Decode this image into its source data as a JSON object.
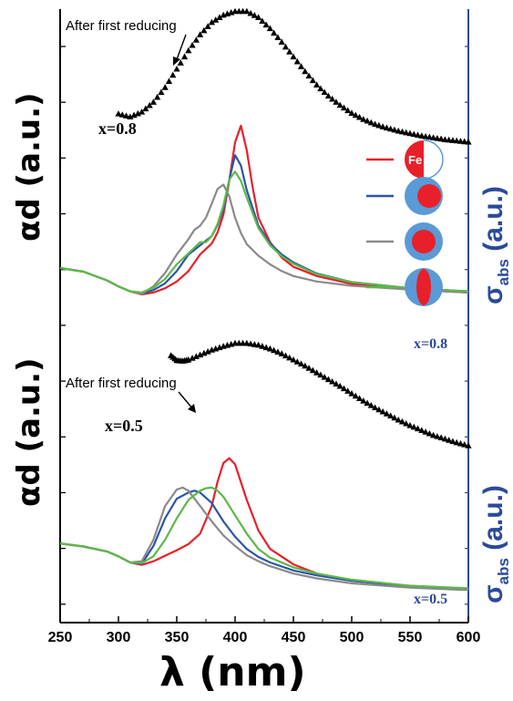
{
  "labels": {
    "ylabel_left_top": "αd (a.u.)",
    "ylabel_left_bottom": "αd (a.u.)",
    "ylabel_right_top_main": "σ",
    "ylabel_right_top_sub": "abs",
    "ylabel_right_top_unit": "(a.u.)",
    "ylabel_right_bottom_main": "σ",
    "ylabel_right_bottom_sub": "abs",
    "ylabel_right_bottom_unit": "(a.u.)",
    "xlabel": "λ (nm)",
    "annotation_top": "After  first reducing",
    "annotation_bottom": "After  first reducing",
    "x_top_left": "x=0.8",
    "x_top_right": "x=0.8",
    "x_bottom_left": "x=0.5",
    "x_bottom_right": "x=0.5",
    "fe_label": "Fe"
  },
  "colors": {
    "red": "#e8202a",
    "blue": "#2b55a7",
    "gray": "#8a8a8a",
    "green": "#5cb84a",
    "marker": "#000000",
    "particle_blue": "#5a9ad6",
    "particle_red": "#e8202a",
    "axis_blue": "#2a4a9a"
  },
  "chart_data": {
    "type": "line",
    "xlim": [
      250,
      600
    ],
    "xticks": [
      "250",
      "300",
      "350",
      "400",
      "450",
      "500",
      "550",
      "600"
    ],
    "ylim": [
      0,
      1
    ],
    "y_units": "a.u.",
    "series": [
      {
        "panel": "top",
        "kind": "marker",
        "color": "marker",
        "x": [
          300,
          310,
          320,
          330,
          340,
          350,
          360,
          370,
          380,
          390,
          400,
          410,
          420,
          430,
          440,
          450,
          460,
          470,
          480,
          490,
          500,
          510,
          520,
          530,
          540,
          550,
          560,
          570,
          580,
          590,
          600
        ],
        "y": [
          0.829,
          0.824,
          0.832,
          0.848,
          0.872,
          0.902,
          0.932,
          0.958,
          0.978,
          0.99,
          0.996,
          0.996,
          0.986,
          0.968,
          0.946,
          0.922,
          0.898,
          0.876,
          0.858,
          0.843,
          0.83,
          0.82,
          0.812,
          0.806,
          0.801,
          0.797,
          0.793,
          0.79,
          0.787,
          0.785,
          0.783
        ]
      },
      {
        "panel": "top",
        "kind": "line",
        "color": "red",
        "x": [
          250,
          270,
          290,
          300,
          310,
          320,
          330,
          340,
          350,
          360,
          370,
          380,
          385,
          390,
          395,
          400,
          405,
          410,
          415,
          420,
          430,
          440,
          450,
          470,
          500,
          550,
          600
        ],
        "y": [
          0.578,
          0.572,
          0.558,
          0.548,
          0.54,
          0.535,
          0.538,
          0.545,
          0.556,
          0.573,
          0.6,
          0.618,
          0.636,
          0.665,
          0.72,
          0.783,
          0.81,
          0.77,
          0.71,
          0.66,
          0.62,
          0.595,
          0.58,
          0.565,
          0.552,
          0.543,
          0.538
        ]
      },
      {
        "panel": "top",
        "kind": "line",
        "color": "blue",
        "x": [
          250,
          270,
          290,
          300,
          310,
          320,
          330,
          340,
          350,
          360,
          370,
          380,
          385,
          390,
          395,
          400,
          405,
          410,
          420,
          430,
          440,
          450,
          470,
          500,
          550,
          600
        ],
        "y": [
          0.578,
          0.572,
          0.558,
          0.548,
          0.54,
          0.536,
          0.542,
          0.553,
          0.573,
          0.6,
          0.615,
          0.63,
          0.648,
          0.674,
          0.722,
          0.762,
          0.745,
          0.705,
          0.647,
          0.618,
          0.6,
          0.587,
          0.569,
          0.555,
          0.545,
          0.54
        ]
      },
      {
        "panel": "top",
        "kind": "line",
        "color": "gray",
        "x": [
          250,
          270,
          290,
          300,
          310,
          320,
          330,
          340,
          350,
          360,
          365,
          370,
          375,
          380,
          385,
          390,
          395,
          400,
          405,
          410,
          420,
          430,
          440,
          450,
          470,
          500,
          550,
          600
        ],
        "y": [
          0.578,
          0.572,
          0.558,
          0.548,
          0.54,
          0.536,
          0.548,
          0.57,
          0.6,
          0.625,
          0.64,
          0.647,
          0.66,
          0.683,
          0.707,
          0.714,
          0.695,
          0.66,
          0.635,
          0.617,
          0.598,
          0.584,
          0.573,
          0.565,
          0.556,
          0.549,
          0.543,
          0.538
        ]
      },
      {
        "panel": "top",
        "kind": "line",
        "color": "green",
        "x": [
          250,
          270,
          290,
          300,
          310,
          320,
          330,
          340,
          350,
          360,
          370,
          375,
          380,
          385,
          390,
          395,
          400,
          405,
          410,
          420,
          430,
          440,
          450,
          470,
          500,
          550,
          600
        ],
        "y": [
          0.578,
          0.572,
          0.558,
          0.548,
          0.54,
          0.538,
          0.546,
          0.56,
          0.584,
          0.602,
          0.62,
          0.62,
          0.63,
          0.65,
          0.68,
          0.722,
          0.735,
          0.72,
          0.693,
          0.643,
          0.615,
          0.597,
          0.585,
          0.568,
          0.555,
          0.545,
          0.54
        ]
      },
      {
        "panel": "bottom",
        "kind": "marker",
        "color": "marker",
        "x": [
          345,
          350,
          355,
          360,
          370,
          380,
          390,
          400,
          410,
          420,
          430,
          440,
          450,
          460,
          470,
          480,
          490,
          500,
          510,
          520,
          530,
          540,
          550,
          560,
          570,
          580,
          590,
          600
        ],
        "y": [
          0.435,
          0.427,
          0.426,
          0.428,
          0.436,
          0.444,
          0.45,
          0.455,
          0.455,
          0.452,
          0.446,
          0.438,
          0.428,
          0.418,
          0.407,
          0.396,
          0.385,
          0.373,
          0.361,
          0.35,
          0.34,
          0.33,
          0.321,
          0.313,
          0.305,
          0.299,
          0.293,
          0.288
        ]
      },
      {
        "panel": "bottom",
        "kind": "line",
        "color": "red",
        "x": [
          250,
          270,
          290,
          300,
          310,
          320,
          330,
          340,
          350,
          360,
          370,
          380,
          385,
          390,
          395,
          400,
          410,
          420,
          430,
          450,
          470,
          500,
          550,
          600
        ],
        "y": [
          0.129,
          0.124,
          0.116,
          0.108,
          0.098,
          0.094,
          0.1,
          0.109,
          0.118,
          0.128,
          0.145,
          0.19,
          0.23,
          0.26,
          0.268,
          0.258,
          0.2,
          0.15,
          0.12,
          0.095,
          0.08,
          0.068,
          0.06,
          0.055
        ]
      },
      {
        "panel": "bottom",
        "kind": "line",
        "color": "blue",
        "x": [
          250,
          270,
          290,
          300,
          310,
          320,
          330,
          340,
          350,
          360,
          365,
          370,
          380,
          390,
          400,
          410,
          420,
          430,
          450,
          470,
          500,
          550,
          600
        ],
        "y": [
          0.129,
          0.124,
          0.116,
          0.108,
          0.098,
          0.096,
          0.125,
          0.17,
          0.202,
          0.212,
          0.215,
          0.212,
          0.195,
          0.165,
          0.14,
          0.12,
          0.107,
          0.098,
          0.085,
          0.077,
          0.068,
          0.059,
          0.054
        ]
      },
      {
        "panel": "bottom",
        "kind": "line",
        "color": "gray",
        "x": [
          250,
          270,
          290,
          300,
          310,
          320,
          330,
          340,
          350,
          355,
          360,
          370,
          380,
          390,
          400,
          410,
          420,
          430,
          450,
          470,
          500,
          550,
          600
        ],
        "y": [
          0.129,
          0.124,
          0.116,
          0.108,
          0.098,
          0.1,
          0.135,
          0.19,
          0.217,
          0.22,
          0.215,
          0.19,
          0.165,
          0.142,
          0.125,
          0.11,
          0.1,
          0.092,
          0.08,
          0.072,
          0.064,
          0.057,
          0.053
        ]
      },
      {
        "panel": "bottom",
        "kind": "line",
        "color": "green",
        "x": [
          250,
          270,
          290,
          300,
          310,
          320,
          330,
          340,
          350,
          360,
          370,
          375,
          380,
          385,
          390,
          400,
          410,
          420,
          430,
          450,
          470,
          500,
          550,
          600
        ],
        "y": [
          0.129,
          0.124,
          0.116,
          0.108,
          0.098,
          0.097,
          0.108,
          0.135,
          0.17,
          0.2,
          0.215,
          0.219,
          0.22,
          0.215,
          0.205,
          0.175,
          0.145,
          0.12,
          0.106,
          0.09,
          0.08,
          0.07,
          0.06,
          0.056
        ]
      }
    ]
  },
  "legend": [
    {
      "color": "red",
      "particle": "half"
    },
    {
      "color": "blue",
      "particle": "offset-core"
    },
    {
      "color": "gray",
      "particle": "centered-core"
    },
    {
      "color": "green",
      "particle": "oval-core"
    }
  ]
}
